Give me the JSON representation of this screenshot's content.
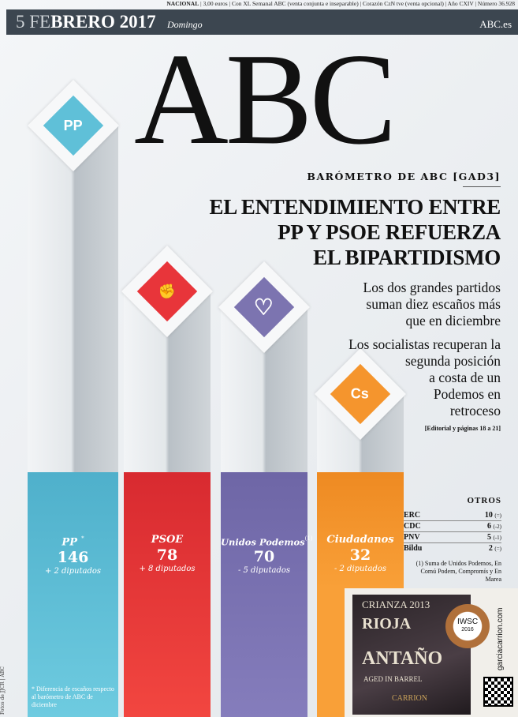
{
  "masthead": {
    "section": "NACIONAL",
    "info": " | 3,00 euros | Con XL Semanal ABC (venta conjunta e inseparable) | Corazón CzN tve (venta opcional) | Año CXIV | Número 36.928",
    "date_light": "5 FE",
    "date_bold": "BRERO 2017",
    "day": "Domingo",
    "website": "ABC.es",
    "logo": "ABC"
  },
  "story": {
    "kicker": "BARÓMETRO DE ABC [GAD3]",
    "headline": [
      "EL ENTENDIMIENTO ENTRE",
      "PP Y PSOE REFUERZA",
      "EL BIPARTIDISMO"
    ],
    "sub1": [
      "Los dos grandes partidos",
      "suman diez escaños más",
      "que en diciembre"
    ],
    "sub2": [
      "Los socialistas recuperan la",
      "segunda posición",
      "a costa de un",
      "Podemos en",
      "retroceso"
    ],
    "reference": "[Editorial y páginas 18 a 21]"
  },
  "parties": [
    {
      "name": "PP",
      "mark": "*",
      "seats": "146",
      "diff": "+ 2 diputados",
      "color": "#5fc0d8",
      "icon": "pp-logo-icon",
      "icon_text": "PP"
    },
    {
      "name": "PSOE",
      "mark": "",
      "seats": "78",
      "diff": "+ 8 diputados",
      "color": "#e8353a",
      "icon": "psoe-fist-rose-icon",
      "icon_text": "✊"
    },
    {
      "name": "Unidos Podemos",
      "mark": "(1)",
      "seats": "70",
      "diff": "- 5 diputados",
      "color": "#7c74b0",
      "icon": "podemos-heart-icon",
      "icon_text": "♡"
    },
    {
      "name": "Ciudadanos",
      "mark": "",
      "seats": "32",
      "diff": "- 2 diputados",
      "color": "#f5952d",
      "icon": "ciudadanos-cs-icon",
      "icon_text": "Cs"
    }
  ],
  "others": {
    "title": "OTROS",
    "rows": [
      {
        "party": "ERC",
        "seats": "10",
        "diff": "(=)"
      },
      {
        "party": "CDC",
        "seats": "6",
        "diff": "(-2)"
      },
      {
        "party": "PNV",
        "seats": "5",
        "diff": "(-1)"
      },
      {
        "party": "Bildu",
        "seats": "2",
        "diff": "(=)"
      }
    ],
    "note": "(1) Suma de Unidos Podemos, En Comú Podem, Compromís y En Marea"
  },
  "footnote": "* Diferencia de escaños respecto al barómetro de ABC de diciembre",
  "credit": "Fotos de JJCR | ABC",
  "ad": {
    "vintage": "CRIANZA 2013",
    "region": "RIOJA",
    "brand": "ANTAÑO",
    "aged": "AGED IN BARREL",
    "winery": "CARRION",
    "medal": "IWSC",
    "medal_year": "2016",
    "url": "garciacarrion.com"
  }
}
